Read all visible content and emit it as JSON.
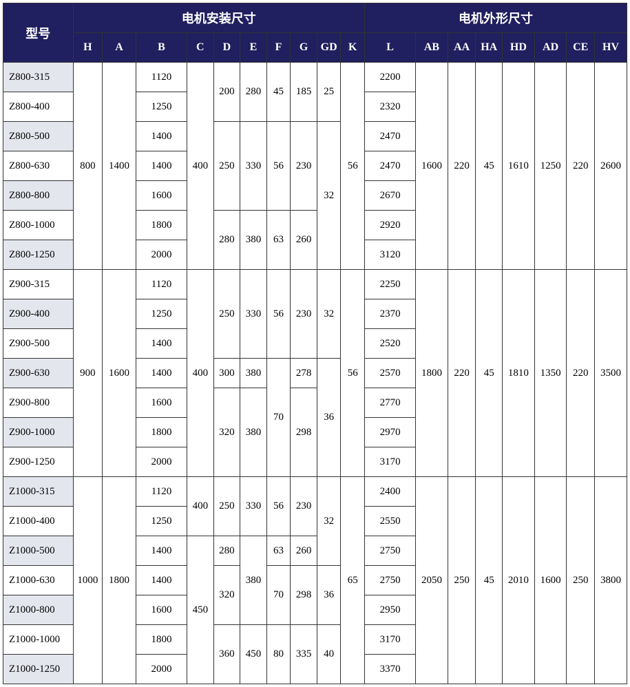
{
  "colors": {
    "header_bg": "#201f5f",
    "header_fg": "#ffffff",
    "shaded_row_bg": "#e4e6ed",
    "border": "#333333",
    "page_bg": "#ffffff"
  },
  "headers": {
    "model": "型号",
    "install": "电机安装尺寸",
    "outline": "电机外形尺寸",
    "cols": [
      "H",
      "A",
      "B",
      "C",
      "D",
      "E",
      "F",
      "G",
      "GD",
      "K",
      "L",
      "AB",
      "AA",
      "HA",
      "HD",
      "AD",
      "CE",
      "HV"
    ]
  },
  "groups": [
    {
      "models": [
        "Z800-315",
        "Z800-400",
        "Z800-500",
        "Z800-630",
        "Z800-800",
        "Z800-1000",
        "Z800-1250"
      ],
      "shaded": [
        true,
        false,
        true,
        false,
        true,
        false,
        true
      ],
      "H": "800",
      "A": "1400",
      "B": [
        "1120",
        "1250",
        "1400",
        "1400",
        "1600",
        "1800",
        "2000"
      ],
      "C": "400",
      "D_blocks": [
        {
          "span": 2,
          "val": "200"
        },
        {
          "span": 3,
          "val": "250"
        },
        {
          "span": 2,
          "val": "280"
        }
      ],
      "E_blocks": [
        {
          "span": 2,
          "val": "280"
        },
        {
          "span": 3,
          "val": "330"
        },
        {
          "span": 2,
          "val": "380"
        }
      ],
      "F_blocks": [
        {
          "span": 2,
          "val": "45"
        },
        {
          "span": 3,
          "val": "56"
        },
        {
          "span": 2,
          "val": "63"
        }
      ],
      "G_blocks": [
        {
          "span": 2,
          "val": "185"
        },
        {
          "span": 3,
          "val": "230"
        },
        {
          "span": 2,
          "val": "260"
        }
      ],
      "GD_blocks": [
        {
          "span": 2,
          "val": "25"
        },
        {
          "span": 5,
          "val": "32"
        }
      ],
      "K": "56",
      "L": [
        "2200",
        "2320",
        "2470",
        "2470",
        "2670",
        "2920",
        "3120"
      ],
      "AB": "1600",
      "AA": "220",
      "HA": "45",
      "HD": "1610",
      "AD": "1250",
      "CE": "220",
      "HV": "2600"
    },
    {
      "models": [
        "Z900-315",
        "Z900-400",
        "Z900-500",
        "Z900-630",
        "Z900-800",
        "Z900-1000",
        "Z900-1250"
      ],
      "shaded": [
        false,
        true,
        false,
        true,
        false,
        true,
        false
      ],
      "H": "900",
      "A": "1600",
      "B": [
        "1120",
        "1250",
        "1400",
        "1400",
        "1600",
        "1800",
        "2000"
      ],
      "C": "400",
      "D_blocks": [
        {
          "span": 3,
          "val": "250"
        },
        {
          "span": 1,
          "val": "300"
        },
        {
          "span": 3,
          "val": "320"
        }
      ],
      "E_blocks": [
        {
          "span": 3,
          "val": "330"
        },
        {
          "span": 1,
          "val": "380"
        },
        {
          "span": 3,
          "val": "380"
        }
      ],
      "F_blocks": [
        {
          "span": 3,
          "val": "56"
        },
        {
          "span": 4,
          "val": "70"
        }
      ],
      "G_blocks": [
        {
          "span": 3,
          "val": "230"
        },
        {
          "span": 1,
          "val": "278"
        },
        {
          "span": 3,
          "val": "298"
        }
      ],
      "GD_blocks": [
        {
          "span": 3,
          "val": "32"
        },
        {
          "span": 4,
          "val": "36"
        }
      ],
      "K": "56",
      "L": [
        "2250",
        "2370",
        "2520",
        "2570",
        "2770",
        "2970",
        "3170"
      ],
      "AB": "1800",
      "AA": "220",
      "HA": "45",
      "HD": "1810",
      "AD": "1350",
      "CE": "220",
      "HV": "3500"
    },
    {
      "models": [
        "Z1000-315",
        "Z1000-400",
        "Z1000-500",
        "Z1000-630",
        "Z1000-800",
        "Z1000-1000",
        "Z1000-1250"
      ],
      "shaded": [
        true,
        false,
        true,
        false,
        true,
        false,
        true
      ],
      "H": "1000",
      "A": "1800",
      "B": [
        "1120",
        "1250",
        "1400",
        "1400",
        "1600",
        "1800",
        "2000"
      ],
      "C_blocks": [
        {
          "span": 2,
          "val": "400"
        },
        {
          "span": 5,
          "val": "450"
        }
      ],
      "D_blocks": [
        {
          "span": 2,
          "val": "250"
        },
        {
          "span": 1,
          "val": "280"
        },
        {
          "span": 2,
          "val": "320"
        },
        {
          "span": 2,
          "val": "360"
        }
      ],
      "E_blocks": [
        {
          "span": 2,
          "val": "330"
        },
        {
          "span": 3,
          "val": "380"
        },
        {
          "span": 2,
          "val": "450"
        }
      ],
      "F_blocks": [
        {
          "span": 2,
          "val": "56"
        },
        {
          "span": 1,
          "val": "63"
        },
        {
          "span": 2,
          "val": "70"
        },
        {
          "span": 2,
          "val": "80"
        }
      ],
      "G_blocks": [
        {
          "span": 2,
          "val": "230"
        },
        {
          "span": 1,
          "val": "260"
        },
        {
          "span": 2,
          "val": "298"
        },
        {
          "span": 2,
          "val": "335"
        }
      ],
      "GD_blocks": [
        {
          "span": 3,
          "val": "32"
        },
        {
          "span": 2,
          "val": "36"
        },
        {
          "span": 2,
          "val": "40"
        }
      ],
      "K": "65",
      "L": [
        "2400",
        "2550",
        "2750",
        "2750",
        "2950",
        "3170",
        "3370"
      ],
      "AB": "2050",
      "AA": "250",
      "HA": "45",
      "HD": "2010",
      "AD": "1600",
      "CE": "250",
      "HV": "3800"
    }
  ]
}
